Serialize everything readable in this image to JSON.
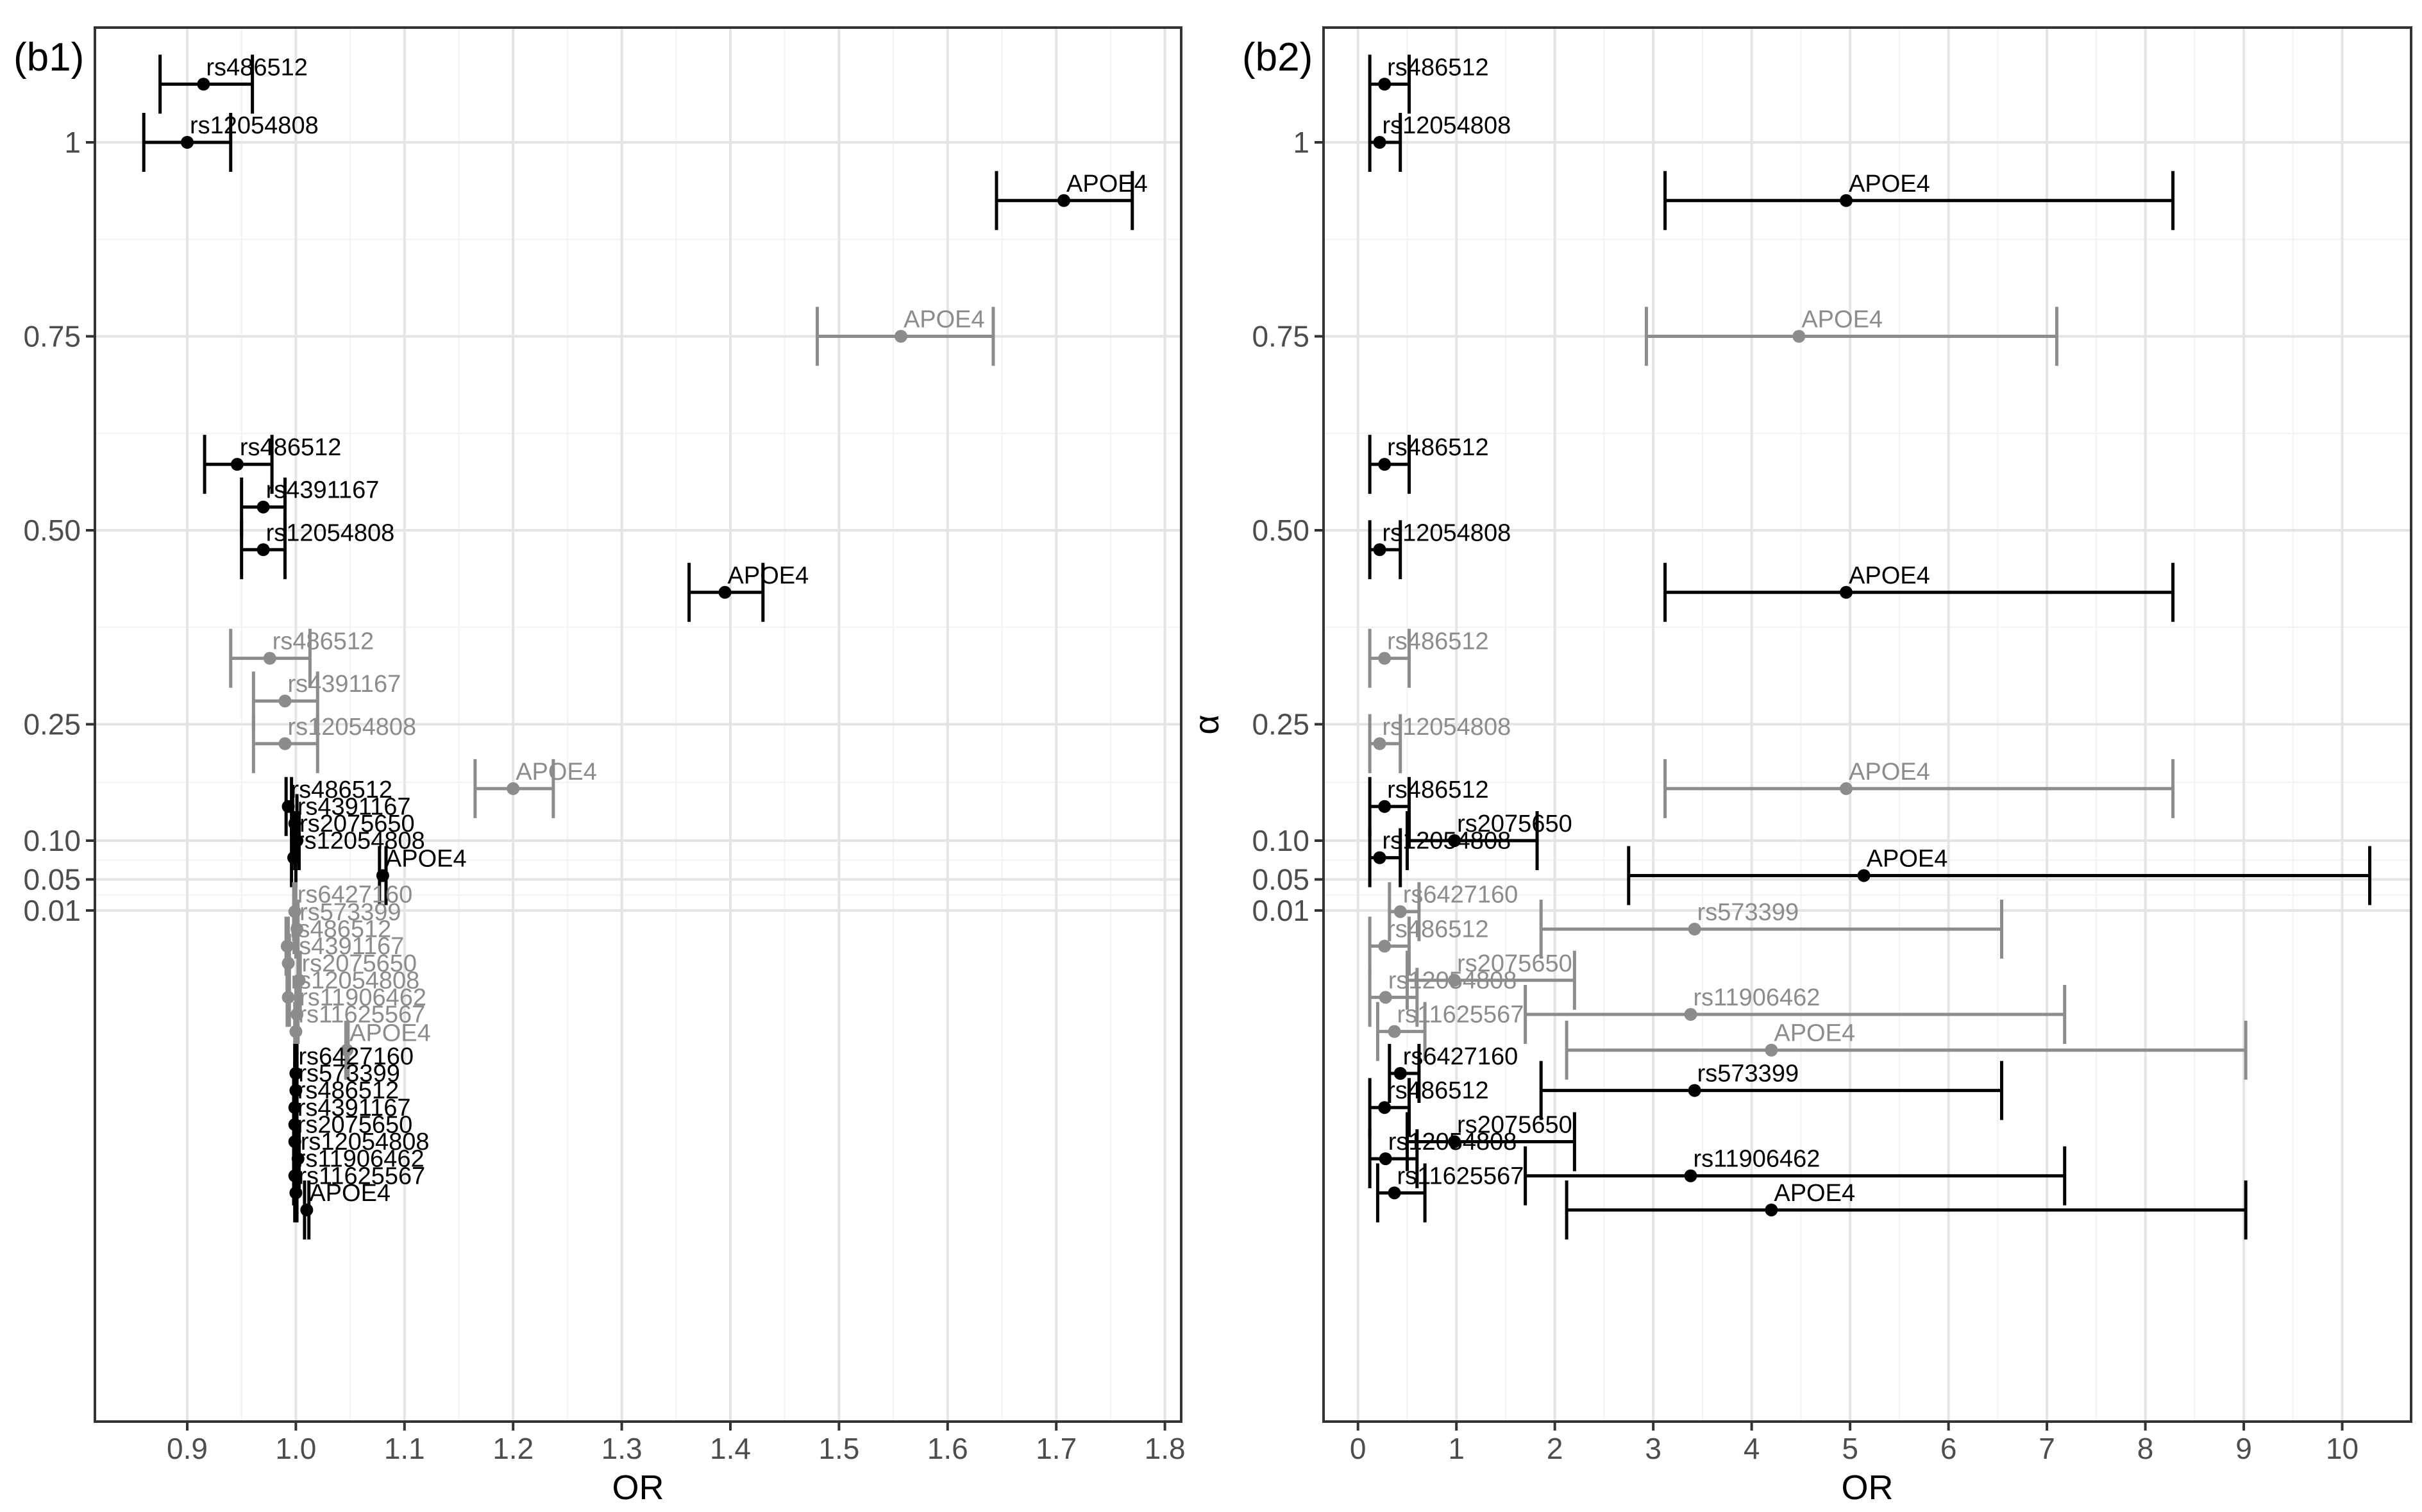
{
  "chart_data": [
    {
      "type": "forest",
      "panel_label": "(b1)",
      "xlabel": "OR",
      "ylabel": "",
      "xticks": [
        0.9,
        1.0,
        1.1,
        1.2,
        1.3,
        1.4,
        1.5,
        1.6,
        1.7,
        1.8
      ],
      "xtick_labels": [
        "0.9",
        "1.0",
        "1.1",
        "1.2",
        "1.3",
        "1.4",
        "1.5",
        "1.6",
        "1.7",
        "1.8"
      ],
      "xlim": [
        0.815,
        1.815
      ],
      "ytick_labels": [
        "1",
        "0.75",
        "0.50",
        "0.25",
        "0.10",
        "0.05",
        "0.01"
      ],
      "grid": true,
      "points": [
        {
          "label": "rs486512",
          "color": "#000000",
          "or": 0.915,
          "lo": 0.875,
          "hi": 0.96,
          "y": 1.075
        },
        {
          "label": "rs12054808",
          "color": "#000000",
          "or": 0.9,
          "lo": 0.86,
          "hi": 0.94,
          "y": 1.0
        },
        {
          "label": "APOE4",
          "color": "#000000",
          "or": 1.707,
          "lo": 1.645,
          "hi": 1.77,
          "y": 0.925
        },
        {
          "label": "APOE4",
          "color": "#8c8c8c",
          "or": 1.557,
          "lo": 1.48,
          "hi": 1.642,
          "y": 0.75
        },
        {
          "label": "rs486512",
          "color": "#000000",
          "or": 0.946,
          "lo": 0.916,
          "hi": 0.978,
          "y": 0.585
        },
        {
          "label": "rs4391167",
          "color": "#000000",
          "or": 0.97,
          "lo": 0.95,
          "hi": 0.99,
          "y": 0.53
        },
        {
          "label": "rs12054808",
          "color": "#000000",
          "or": 0.97,
          "lo": 0.95,
          "hi": 0.99,
          "y": 0.475
        },
        {
          "label": "APOE4",
          "color": "#000000",
          "or": 1.395,
          "lo": 1.362,
          "hi": 1.43,
          "y": 0.42
        },
        {
          "label": "rs486512",
          "color": "#8c8c8c",
          "or": 0.976,
          "lo": 0.94,
          "hi": 1.013,
          "y": 0.335
        },
        {
          "label": "rs4391167",
          "color": "#8c8c8c",
          "or": 0.99,
          "lo": 0.961,
          "hi": 1.02,
          "y": 0.28
        },
        {
          "label": "rs12054808",
          "color": "#8c8c8c",
          "or": 0.99,
          "lo": 0.961,
          "hi": 1.02,
          "y": 0.225
        },
        {
          "label": "APOE4",
          "color": "#8c8c8c",
          "or": 1.2,
          "lo": 1.165,
          "hi": 1.237,
          "y": 0.167
        },
        {
          "label": "rs486512",
          "color": "#000000",
          "or": 0.993,
          "lo": 0.991,
          "hi": 0.996,
          "y": 0.144
        },
        {
          "label": "rs4391167",
          "color": "#000000",
          "or": 0.999,
          "lo": 0.997,
          "hi": 1.001,
          "y": 0.122
        },
        {
          "label": "rs2075650",
          "color": "#000000",
          "or": 1.001,
          "lo": 0.999,
          "hi": 1.003,
          "y": 0.1
        },
        {
          "label": "rs12054808",
          "color": "#000000",
          "or": 0.998,
          "lo": 0.996,
          "hi": 1.0,
          "y": 0.078
        },
        {
          "label": "APOE4",
          "color": "#000000",
          "or": 1.08,
          "lo": 1.077,
          "hi": 1.083,
          "y": 0.055
        },
        {
          "label": "rs6427160",
          "color": "#8c8c8c",
          "or": 0.999,
          "lo": 0.998,
          "hi": 1.0,
          "y": 0.0085
        },
        {
          "label": "rs573399",
          "color": "#8c8c8c",
          "or": 1.001,
          "lo": 1.0,
          "hi": 1.002,
          "y": -0.014
        },
        {
          "label": "rs486512",
          "color": "#8c8c8c",
          "or": 0.992,
          "lo": 0.991,
          "hi": 0.993,
          "y": -0.036
        },
        {
          "label": "rs4391167",
          "color": "#8c8c8c",
          "or": 0.993,
          "lo": 0.992,
          "hi": 0.994,
          "y": -0.058
        },
        {
          "label": "rs2075650",
          "color": "#8c8c8c",
          "or": 1.003,
          "lo": 1.002,
          "hi": 1.004,
          "y": -0.08
        },
        {
          "label": "rs12054808",
          "color": "#8c8c8c",
          "or": 0.993,
          "lo": 0.992,
          "hi": 0.994,
          "y": -0.102
        },
        {
          "label": "rs11906462",
          "color": "#8c8c8c",
          "or": 1.001,
          "lo": 1.0,
          "hi": 1.002,
          "y": -0.124
        },
        {
          "label": "rs11625567",
          "color": "#8c8c8c",
          "or": 1.0,
          "lo": 0.999,
          "hi": 1.001,
          "y": -0.146
        },
        {
          "label": "APOE4",
          "color": "#8c8c8c",
          "or": 1.047,
          "lo": 1.046,
          "hi": 1.048,
          "y": -0.17
        },
        {
          "label": "rs6427160",
          "color": "#000000",
          "or": 1.0,
          "lo": 0.999,
          "hi": 1.001,
          "y": -0.2
        },
        {
          "label": "rs573399",
          "color": "#000000",
          "or": 1.0,
          "lo": 0.999,
          "hi": 1.001,
          "y": -0.222
        },
        {
          "label": "rs486512",
          "color": "#000000",
          "or": 0.999,
          "lo": 0.998,
          "hi": 1.0,
          "y": -0.244
        },
        {
          "label": "rs4391167",
          "color": "#000000",
          "or": 0.999,
          "lo": 0.998,
          "hi": 1.0,
          "y": -0.266
        },
        {
          "label": "rs2075650",
          "color": "#000000",
          "or": 0.999,
          "lo": 0.998,
          "hi": 1.0,
          "y": -0.288
        },
        {
          "label": "rs12054808",
          "color": "#000000",
          "or": 1.002,
          "lo": 1.001,
          "hi": 1.003,
          "y": -0.31
        },
        {
          "label": "rs11906462",
          "color": "#000000",
          "or": 0.999,
          "lo": 0.998,
          "hi": 1.0,
          "y": -0.332
        },
        {
          "label": "rs11625567",
          "color": "#000000",
          "or": 1.0,
          "lo": 0.999,
          "hi": 1.001,
          "y": -0.354
        },
        {
          "label": "APOE4",
          "color": "#000000",
          "or": 1.01,
          "lo": 1.008,
          "hi": 1.012,
          "y": -0.376
        }
      ]
    },
    {
      "type": "forest",
      "panel_label": "(b2)",
      "xlabel": "OR",
      "ylabel": "α",
      "xticks": [
        0,
        1,
        2,
        3,
        4,
        5,
        6,
        7,
        8,
        9,
        10
      ],
      "xtick_labels": [
        "0",
        "1",
        "2",
        "3",
        "4",
        "5",
        "6",
        "7",
        "8",
        "9",
        "10"
      ],
      "xlim": [
        -0.35,
        10.7
      ],
      "ytick_labels": [
        "1",
        "0.75",
        "0.50",
        "0.25",
        "0.10",
        "0.05",
        "0.01"
      ],
      "grid": true,
      "points": [
        {
          "label": "rs486512",
          "color": "#000000",
          "or": 0.27,
          "lo": 0.12,
          "hi": 0.52,
          "y": 1.075
        },
        {
          "label": "rs12054808",
          "color": "#000000",
          "or": 0.22,
          "lo": 0.12,
          "hi": 0.43,
          "y": 1.0
        },
        {
          "label": "APOE4",
          "color": "#000000",
          "or": 4.96,
          "lo": 3.12,
          "hi": 8.28,
          "y": 0.925
        },
        {
          "label": "APOE4",
          "color": "#8c8c8c",
          "or": 4.48,
          "lo": 2.93,
          "hi": 7.1,
          "y": 0.75
        },
        {
          "label": "rs486512",
          "color": "#000000",
          "or": 0.27,
          "lo": 0.12,
          "hi": 0.52,
          "y": 0.585
        },
        {
          "label": "rs12054808",
          "color": "#000000",
          "or": 0.22,
          "lo": 0.12,
          "hi": 0.43,
          "y": 0.475
        },
        {
          "label": "APOE4",
          "color": "#000000",
          "or": 4.96,
          "lo": 3.12,
          "hi": 8.28,
          "y": 0.42
        },
        {
          "label": "rs486512",
          "color": "#8c8c8c",
          "or": 0.27,
          "lo": 0.12,
          "hi": 0.52,
          "y": 0.335
        },
        {
          "label": "rs12054808",
          "color": "#8c8c8c",
          "or": 0.22,
          "lo": 0.12,
          "hi": 0.43,
          "y": 0.225
        },
        {
          "label": "APOE4",
          "color": "#8c8c8c",
          "or": 4.96,
          "lo": 3.12,
          "hi": 8.28,
          "y": 0.167
        },
        {
          "label": "rs486512",
          "color": "#000000",
          "or": 0.27,
          "lo": 0.12,
          "hi": 0.52,
          "y": 0.144
        },
        {
          "label": "rs2075650",
          "color": "#000000",
          "or": 0.98,
          "lo": 0.5,
          "hi": 1.82,
          "y": 0.1
        },
        {
          "label": "rs12054808",
          "color": "#000000",
          "or": 0.22,
          "lo": 0.12,
          "hi": 0.43,
          "y": 0.078
        },
        {
          "label": "APOE4",
          "color": "#000000",
          "or": 5.14,
          "lo": 2.75,
          "hi": 10.28,
          "y": 0.055
        },
        {
          "label": "rs6427160",
          "color": "#8c8c8c",
          "or": 0.43,
          "lo": 0.32,
          "hi": 0.62,
          "y": 0.0085
        },
        {
          "label": "rs573399",
          "color": "#8c8c8c",
          "or": 3.42,
          "lo": 1.86,
          "hi": 6.54,
          "y": -0.014
        },
        {
          "label": "rs486512",
          "color": "#8c8c8c",
          "or": 0.27,
          "lo": 0.12,
          "hi": 0.52,
          "y": -0.036
        },
        {
          "label": "rs2075650",
          "color": "#8c8c8c",
          "or": 0.98,
          "lo": 0.5,
          "hi": 2.2,
          "y": -0.08
        },
        {
          "label": "rs12054808",
          "color": "#8c8c8c",
          "or": 0.28,
          "lo": 0.12,
          "hi": 0.6,
          "y": -0.102
        },
        {
          "label": "rs11906462",
          "color": "#8c8c8c",
          "or": 3.38,
          "lo": 1.7,
          "hi": 7.18,
          "y": -0.124
        },
        {
          "label": "rs11625567",
          "color": "#8c8c8c",
          "or": 0.37,
          "lo": 0.2,
          "hi": 0.68,
          "y": -0.146
        },
        {
          "label": "APOE4",
          "color": "#8c8c8c",
          "or": 4.2,
          "lo": 2.12,
          "hi": 9.02,
          "y": -0.17
        },
        {
          "label": "rs6427160",
          "color": "#000000",
          "or": 0.43,
          "lo": 0.32,
          "hi": 0.62,
          "y": -0.2
        },
        {
          "label": "rs573399",
          "color": "#000000",
          "or": 3.42,
          "lo": 1.86,
          "hi": 6.54,
          "y": -0.222
        },
        {
          "label": "rs486512",
          "color": "#000000",
          "or": 0.27,
          "lo": 0.12,
          "hi": 0.52,
          "y": -0.244
        },
        {
          "label": "rs2075650",
          "color": "#000000",
          "or": 0.98,
          "lo": 0.5,
          "hi": 2.2,
          "y": -0.288
        },
        {
          "label": "rs12054808",
          "color": "#000000",
          "or": 0.28,
          "lo": 0.12,
          "hi": 0.6,
          "y": -0.31
        },
        {
          "label": "rs11906462",
          "color": "#000000",
          "or": 3.38,
          "lo": 1.7,
          "hi": 7.18,
          "y": -0.332
        },
        {
          "label": "rs11625567",
          "color": "#000000",
          "or": 0.37,
          "lo": 0.2,
          "hi": 0.68,
          "y": -0.354
        },
        {
          "label": "APOE4",
          "color": "#000000",
          "or": 4.2,
          "lo": 2.12,
          "hi": 9.02,
          "y": -0.376
        }
      ]
    }
  ]
}
